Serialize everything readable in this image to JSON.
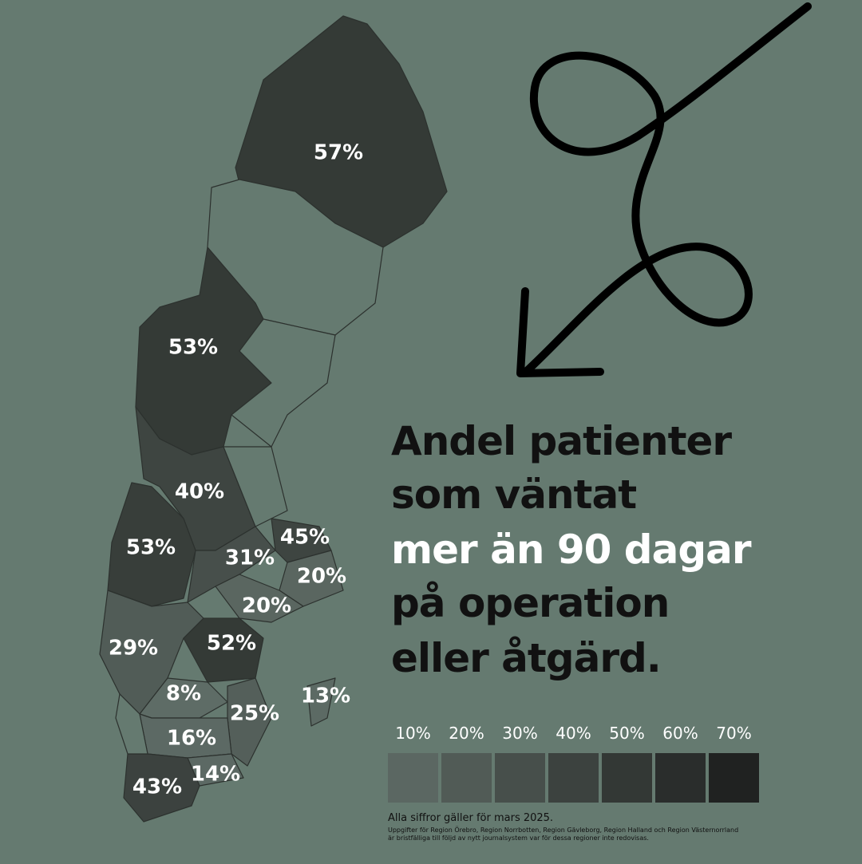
{
  "map": {
    "labels": [
      "57%",
      "53%",
      "40%",
      "53%",
      "31%",
      "45%",
      "20%",
      "20%",
      "29%",
      "52%",
      "8%",
      "13%",
      "25%",
      "16%",
      "14%",
      "43%"
    ]
  },
  "title": [
    "Andel patienter",
    "som väntat",
    "mer än 90 dagar",
    "på operation",
    "eller åtgärd."
  ],
  "legend": {
    "labels": [
      "10%",
      "20%",
      "30%",
      "40%",
      "50%",
      "60%",
      "70%"
    ],
    "colors": [
      "#5b6762",
      "#515b56",
      "#474f4b",
      "#3c423f",
      "#333835",
      "#2a2d2c",
      "#202221"
    ]
  },
  "notes": [
    "Alla siffror gäller för mars 2025.",
    "Uppgifter för Region Örebro, Region Norrbotten, Region Gävleborg, Region Halland och Region Västernorrland",
    "är bristfälliga till följd av nytt journalsystem var för dessa regioner inte redovisas."
  ]
}
